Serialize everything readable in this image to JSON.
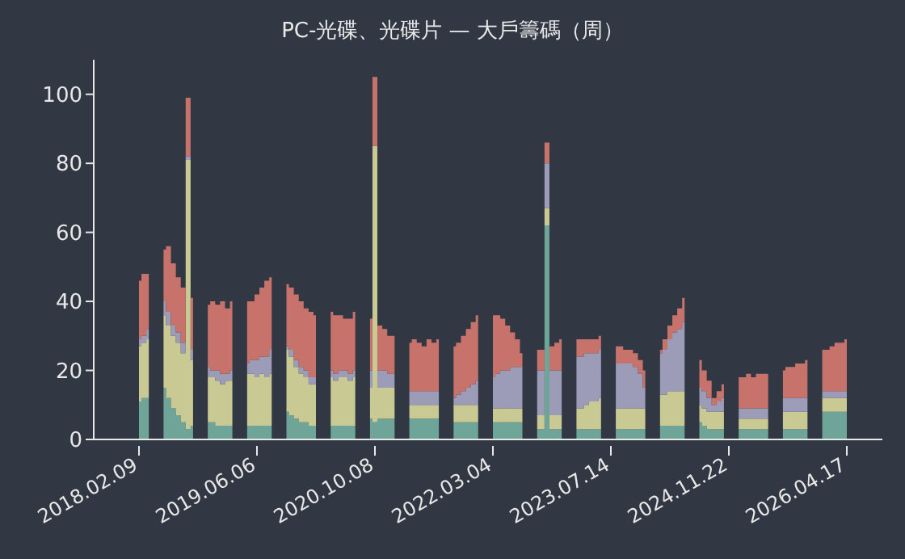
{
  "chart_data": {
    "type": "area",
    "stacked": true,
    "title": "PC-光碟、光碟片 — 大戶籌碼（周）",
    "categories": [
      "2018.02.09",
      null,
      null,
      null,
      null,
      null,
      null,
      null,
      null,
      null,
      null,
      null,
      null,
      null,
      null,
      null,
      null,
      null,
      null,
      null,
      null,
      null,
      null,
      null,
      "2019.06.06",
      null,
      null,
      null,
      null,
      null,
      null,
      null,
      null,
      null,
      null,
      null,
      null,
      null,
      null,
      null,
      null,
      null,
      null,
      null,
      null,
      null,
      null,
      null,
      "2020.10.08",
      null,
      null,
      null,
      null,
      null,
      null,
      null,
      null,
      null,
      null,
      null,
      null,
      null,
      null,
      null,
      null,
      null,
      null,
      null,
      null,
      null,
      null,
      null,
      "2022.03.04",
      null,
      null,
      null,
      null,
      null,
      null,
      null,
      null,
      null,
      null,
      null,
      null,
      null,
      null,
      null,
      null,
      null,
      null,
      null,
      null,
      null,
      null,
      null,
      "2023.07.14",
      null,
      null,
      null,
      null,
      null,
      null,
      null,
      null,
      null,
      null,
      null,
      null,
      null,
      null,
      null,
      null,
      null,
      null,
      null,
      null,
      null,
      null,
      null,
      "2024.11.22",
      null,
      null,
      null,
      null,
      null,
      null,
      null,
      null,
      null,
      null,
      null,
      null,
      null,
      null,
      null,
      null,
      null,
      null,
      null,
      null,
      null,
      null,
      null,
      "2026.04.17"
    ],
    "series": [
      {
        "color": "#6fa598",
        "values": [
          11,
          12,
          12,
          null,
          null,
          15,
          12,
          9,
          7,
          5,
          3,
          4,
          null,
          null,
          5,
          5,
          4,
          4,
          4,
          4,
          null,
          null,
          4,
          4,
          4,
          4,
          4,
          4,
          null,
          null,
          8,
          7,
          6,
          5,
          5,
          4,
          4,
          null,
          null,
          4,
          4,
          4,
          4,
          4,
          4,
          null,
          null,
          6,
          5,
          6,
          6,
          6,
          6,
          null,
          null,
          6,
          6,
          6,
          6,
          6,
          6,
          6,
          null,
          null,
          5,
          5,
          5,
          5,
          5,
          5,
          null,
          null,
          5,
          5,
          5,
          5,
          5,
          5,
          5,
          null,
          null,
          3,
          3,
          62,
          3,
          3,
          3,
          null,
          null,
          3,
          3,
          3,
          3,
          3,
          3,
          null,
          null,
          3,
          3,
          3,
          3,
          3,
          3,
          3,
          null,
          null,
          4,
          4,
          4,
          4,
          4,
          4,
          null,
          null,
          5,
          4,
          3,
          3,
          3,
          3,
          null,
          null,
          3,
          3,
          3,
          3,
          3,
          3,
          3,
          null,
          null,
          3,
          3,
          3,
          3,
          3,
          3,
          null,
          null,
          8,
          8,
          8,
          8,
          8,
          8
        ]
      },
      {
        "color": "#c9c993",
        "values": [
          16,
          16,
          17,
          null,
          null,
          21,
          21,
          21,
          21,
          20,
          78,
          19,
          null,
          null,
          13,
          13,
          13,
          12,
          13,
          13,
          null,
          null,
          15,
          15,
          14,
          15,
          14,
          15,
          null,
          null,
          18,
          17,
          15,
          14,
          13,
          12,
          12,
          null,
          null,
          14,
          13,
          14,
          14,
          13,
          14,
          null,
          null,
          9,
          80,
          9,
          9,
          9,
          9,
          null,
          null,
          4,
          4,
          4,
          4,
          4,
          4,
          4,
          null,
          null,
          5,
          5,
          5,
          5,
          5,
          5,
          null,
          null,
          4,
          4,
          4,
          4,
          4,
          4,
          4,
          null,
          null,
          4,
          4,
          5,
          4,
          4,
          4,
          null,
          null,
          6,
          6,
          7,
          8,
          8,
          9,
          null,
          null,
          6,
          6,
          6,
          6,
          6,
          6,
          6,
          null,
          null,
          9,
          9,
          10,
          10,
          10,
          10,
          null,
          null,
          5,
          5,
          5,
          5,
          5,
          5,
          null,
          null,
          3,
          3,
          3,
          3,
          3,
          3,
          3,
          null,
          null,
          5,
          5,
          5,
          5,
          5,
          5,
          null,
          null,
          4,
          4,
          4,
          4,
          4,
          4
        ]
      },
      {
        "color": "#9c9cb8",
        "values": [
          2,
          2,
          3,
          null,
          null,
          4,
          4,
          3,
          3,
          3,
          1,
          3,
          null,
          null,
          3,
          2,
          3,
          3,
          2,
          3,
          null,
          null,
          3,
          4,
          5,
          5,
          6,
          7,
          null,
          null,
          1,
          2,
          2,
          2,
          2,
          2,
          2,
          null,
          null,
          2,
          2,
          2,
          2,
          2,
          2,
          null,
          null,
          5,
          0,
          5,
          5,
          4,
          4,
          null,
          null,
          4,
          4,
          4,
          4,
          4,
          4,
          4,
          null,
          null,
          2,
          3,
          4,
          5,
          6,
          7,
          null,
          null,
          9,
          10,
          11,
          11,
          12,
          12,
          12,
          null,
          null,
          13,
          13,
          13,
          13,
          13,
          13,
          null,
          null,
          15,
          15,
          15,
          14,
          14,
          14,
          null,
          null,
          13,
          13,
          13,
          13,
          12,
          10,
          6,
          null,
          null,
          12,
          13,
          15,
          17,
          18,
          20,
          null,
          null,
          5,
          5,
          4,
          2,
          3,
          4,
          null,
          null,
          3,
          3,
          3,
          3,
          3,
          3,
          3,
          null,
          null,
          4,
          4,
          4,
          4,
          4,
          4,
          null,
          null,
          2,
          2,
          2,
          2,
          2,
          2
        ]
      },
      {
        "color": "#c7736b",
        "values": [
          17,
          18,
          16,
          null,
          null,
          15,
          19,
          18,
          16,
          16,
          17,
          15,
          null,
          null,
          18,
          20,
          19,
          21,
          19,
          20,
          null,
          null,
          18,
          17,
          19,
          20,
          22,
          21,
          null,
          null,
          18,
          18,
          19,
          19,
          18,
          19,
          18,
          null,
          null,
          17,
          17,
          16,
          15,
          16,
          17,
          null,
          null,
          15,
          20,
          13,
          12,
          11,
          11,
          null,
          null,
          14,
          15,
          14,
          13,
          15,
          14,
          15,
          null,
          null,
          15,
          15,
          16,
          17,
          18,
          19,
          null,
          null,
          18,
          17,
          15,
          13,
          10,
          8,
          4,
          null,
          null,
          6,
          6,
          6,
          7,
          8,
          9,
          null,
          null,
          5,
          5,
          4,
          4,
          4,
          4,
          null,
          null,
          5,
          5,
          4,
          4,
          4,
          4,
          5,
          null,
          null,
          1,
          3,
          4,
          5,
          6,
          7,
          null,
          null,
          8,
          6,
          5,
          2,
          3,
          4,
          null,
          null,
          9,
          9,
          10,
          9,
          10,
          10,
          10,
          null,
          null,
          8,
          9,
          9,
          10,
          10,
          11,
          null,
          null,
          12,
          12,
          13,
          14,
          14,
          15
        ]
      }
    ],
    "ylim": [
      0,
      110
    ],
    "yticks": [
      0,
      20,
      40,
      60,
      80,
      100
    ]
  }
}
